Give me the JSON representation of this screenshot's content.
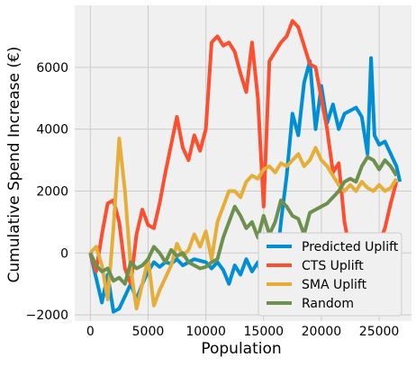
{
  "chart_data": {
    "type": "line",
    "title": "",
    "xlabel": "Population",
    "ylabel": "Cumulative Spend Increase (€)",
    "xlim": [
      -1350,
      27800
    ],
    "ylim": [
      -2200,
      8000
    ],
    "x_ticks": [
      0,
      5000,
      10000,
      15000,
      20000,
      25000
    ],
    "y_ticks": [
      -2000,
      0,
      2000,
      4000,
      6000
    ],
    "x_tick_labels": [
      "0",
      "5000",
      "10000",
      "15000",
      "20000",
      "25000"
    ],
    "y_tick_labels": [
      "−2000",
      "0",
      "2000",
      "4000",
      "6000"
    ],
    "grid": true,
    "legend_position": "lower-right",
    "series": [
      {
        "name": "Predicted Uplift",
        "color": "#008fd5",
        "points": [
          [
            0,
            0
          ],
          [
            500,
            -800
          ],
          [
            1000,
            -1600
          ],
          [
            1500,
            -700
          ],
          [
            2000,
            -1900
          ],
          [
            2500,
            -1800
          ],
          [
            3000,
            -1400
          ],
          [
            3500,
            -1000
          ],
          [
            4000,
            -1500
          ],
          [
            4500,
            -1000
          ],
          [
            5000,
            -600
          ],
          [
            5500,
            -300
          ],
          [
            6000,
            -450
          ],
          [
            6500,
            -300
          ],
          [
            7000,
            -350
          ],
          [
            7500,
            -200
          ],
          [
            8000,
            -400
          ],
          [
            8500,
            -300
          ],
          [
            9000,
            -200
          ],
          [
            9500,
            -250
          ],
          [
            10000,
            -300
          ],
          [
            10500,
            -500
          ],
          [
            11000,
            -300
          ],
          [
            11500,
            -550
          ],
          [
            12000,
            -1000
          ],
          [
            12500,
            -400
          ],
          [
            13000,
            -700
          ],
          [
            13500,
            -200
          ],
          [
            14000,
            -600
          ],
          [
            14500,
            -300
          ],
          [
            15000,
            -1000
          ],
          [
            15500,
            -100
          ],
          [
            16000,
            -800
          ],
          [
            16500,
            1000
          ],
          [
            17000,
            2500
          ],
          [
            17500,
            4500
          ],
          [
            18000,
            3800
          ],
          [
            18500,
            5500
          ],
          [
            19000,
            6200
          ],
          [
            19500,
            4000
          ],
          [
            20000,
            5400
          ],
          [
            20500,
            4200
          ],
          [
            21000,
            4800
          ],
          [
            21500,
            4000
          ],
          [
            22000,
            4500
          ],
          [
            22500,
            4600
          ],
          [
            23000,
            4700
          ],
          [
            23500,
            4400
          ],
          [
            24000,
            3200
          ],
          [
            24300,
            6300
          ],
          [
            24600,
            3800
          ],
          [
            25000,
            3500
          ],
          [
            25500,
            3600
          ],
          [
            26000,
            3200
          ],
          [
            26500,
            2800
          ],
          [
            26800,
            2300
          ]
        ]
      },
      {
        "name": "CTS Uplift",
        "color": "#fc4f30",
        "points": [
          [
            0,
            0
          ],
          [
            500,
            -600
          ],
          [
            1000,
            600
          ],
          [
            1500,
            1600
          ],
          [
            2000,
            1700
          ],
          [
            2500,
            1000
          ],
          [
            3000,
            -500
          ],
          [
            3500,
            -1000
          ],
          [
            4000,
            600
          ],
          [
            4500,
            1400
          ],
          [
            5000,
            900
          ],
          [
            5500,
            800
          ],
          [
            6000,
            1600
          ],
          [
            6500,
            2600
          ],
          [
            7000,
            3500
          ],
          [
            7500,
            4400
          ],
          [
            8000,
            3400
          ],
          [
            8500,
            3000
          ],
          [
            9000,
            3800
          ],
          [
            9500,
            3300
          ],
          [
            10000,
            4000
          ],
          [
            10500,
            6800
          ],
          [
            11000,
            7000
          ],
          [
            11500,
            6700
          ],
          [
            12000,
            6800
          ],
          [
            12500,
            6500
          ],
          [
            13000,
            5800
          ],
          [
            13500,
            5200
          ],
          [
            14000,
            6800
          ],
          [
            14500,
            5000
          ],
          [
            15000,
            1500
          ],
          [
            15500,
            6200
          ],
          [
            16000,
            6500
          ],
          [
            16500,
            6800
          ],
          [
            17000,
            7000
          ],
          [
            17500,
            7500
          ],
          [
            18000,
            7300
          ],
          [
            18500,
            6700
          ],
          [
            19000,
            6100
          ],
          [
            19500,
            6000
          ],
          [
            20000,
            5000
          ],
          [
            20500,
            4000
          ],
          [
            21000,
            2600
          ],
          [
            21500,
            2900
          ],
          [
            22000,
            1000
          ],
          [
            22500,
            0
          ],
          [
            23000,
            100
          ],
          [
            23500,
            300
          ],
          [
            24000,
            500
          ],
          [
            24500,
            200
          ],
          [
            25000,
            300
          ],
          [
            25500,
            800
          ],
          [
            26000,
            1600
          ],
          [
            26500,
            2300
          ]
        ]
      },
      {
        "name": "SMA Uplift",
        "color": "#e5ae38",
        "points": [
          [
            0,
            0
          ],
          [
            500,
            200
          ],
          [
            1000,
            -400
          ],
          [
            1500,
            -1500
          ],
          [
            2000,
            800
          ],
          [
            2500,
            3700
          ],
          [
            3000,
            2000
          ],
          [
            3500,
            -500
          ],
          [
            4000,
            -1800
          ],
          [
            4500,
            -1000
          ],
          [
            5000,
            -200
          ],
          [
            5500,
            -1700
          ],
          [
            6000,
            -1200
          ],
          [
            6500,
            -800
          ],
          [
            7000,
            -400
          ],
          [
            7500,
            300
          ],
          [
            8000,
            -100
          ],
          [
            8500,
            100
          ],
          [
            9000,
            600
          ],
          [
            9500,
            200
          ],
          [
            10000,
            700
          ],
          [
            10500,
            -200
          ],
          [
            11000,
            1000
          ],
          [
            11500,
            1500
          ],
          [
            12000,
            2000
          ],
          [
            12500,
            2000
          ],
          [
            13000,
            1800
          ],
          [
            13500,
            2300
          ],
          [
            14000,
            2500
          ],
          [
            14500,
            2400
          ],
          [
            15000,
            2700
          ],
          [
            15500,
            2800
          ],
          [
            16000,
            2600
          ],
          [
            16500,
            2900
          ],
          [
            17000,
            2800
          ],
          [
            17500,
            3000
          ],
          [
            18000,
            3200
          ],
          [
            18500,
            2800
          ],
          [
            19000,
            3000
          ],
          [
            19500,
            3400
          ],
          [
            20000,
            3000
          ],
          [
            20500,
            2800
          ],
          [
            21000,
            2500
          ],
          [
            21500,
            2200
          ],
          [
            22000,
            2000
          ],
          [
            22500,
            2200
          ],
          [
            23000,
            2000
          ],
          [
            23500,
            2300
          ],
          [
            24000,
            2100
          ],
          [
            24500,
            2000
          ],
          [
            25000,
            2200
          ],
          [
            25500,
            2000
          ],
          [
            26000,
            2100
          ],
          [
            26500,
            2400
          ]
        ]
      },
      {
        "name": "Random",
        "color": "#6d904f",
        "points": [
          [
            0,
            0
          ],
          [
            500,
            -400
          ],
          [
            1000,
            -600
          ],
          [
            1500,
            -500
          ],
          [
            2000,
            -900
          ],
          [
            2500,
            -800
          ],
          [
            3000,
            -1000
          ],
          [
            3500,
            -300
          ],
          [
            4000,
            -500
          ],
          [
            4500,
            -400
          ],
          [
            5000,
            -200
          ],
          [
            5500,
            200
          ],
          [
            6000,
            0
          ],
          [
            6500,
            -300
          ],
          [
            7000,
            100
          ],
          [
            7500,
            -100
          ],
          [
            8000,
            0
          ],
          [
            8500,
            -300
          ],
          [
            9000,
            -400
          ],
          [
            9500,
            -500
          ],
          [
            10000,
            -450
          ],
          [
            10500,
            -300
          ],
          [
            11000,
            -200
          ],
          [
            11500,
            500
          ],
          [
            12000,
            1000
          ],
          [
            12500,
            1500
          ],
          [
            13000,
            1200
          ],
          [
            13500,
            800
          ],
          [
            14000,
            1000
          ],
          [
            14500,
            500
          ],
          [
            15000,
            1200
          ],
          [
            15500,
            600
          ],
          [
            16000,
            1000
          ],
          [
            16500,
            1700
          ],
          [
            17000,
            1500
          ],
          [
            17500,
            1200
          ],
          [
            18000,
            1100
          ],
          [
            18500,
            600
          ],
          [
            19000,
            1300
          ],
          [
            19500,
            1400
          ],
          [
            20000,
            1500
          ],
          [
            20500,
            1600
          ],
          [
            21000,
            1800
          ],
          [
            21500,
            2000
          ],
          [
            22000,
            2300
          ],
          [
            22500,
            2400
          ],
          [
            23000,
            2300
          ],
          [
            23500,
            2800
          ],
          [
            24000,
            3100
          ],
          [
            24500,
            3000
          ],
          [
            25000,
            2700
          ],
          [
            25500,
            3000
          ],
          [
            26000,
            2800
          ],
          [
            26500,
            2500
          ]
        ]
      }
    ]
  }
}
